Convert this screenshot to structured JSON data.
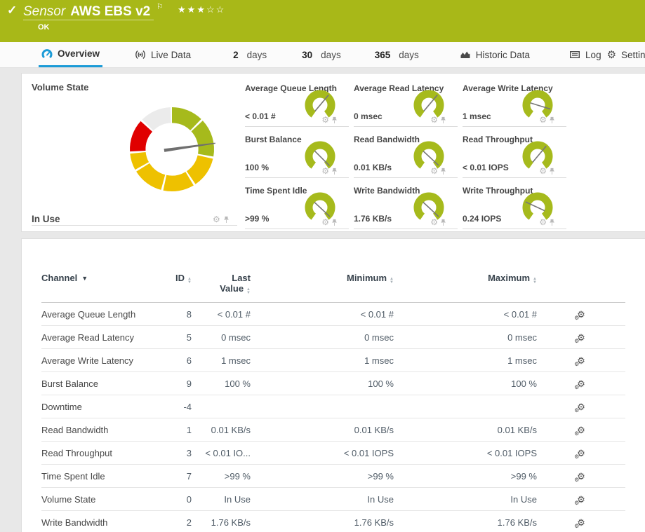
{
  "header": {
    "type_label": "Sensor",
    "sensor_name": "AWS EBS v2",
    "status_text": "OK",
    "stars_filled": "★★★",
    "stars_empty": "☆☆",
    "bar_color": "#a8b818"
  },
  "tabs": {
    "overview": {
      "label": "Overview"
    },
    "live_data": {
      "label": "Live Data"
    },
    "days2": {
      "num": "2",
      "unit": "days"
    },
    "days30": {
      "num": "30",
      "unit": "days"
    },
    "days365": {
      "num": "365",
      "unit": "days"
    },
    "historic": {
      "label": "Historic Data"
    },
    "log": {
      "label": "Log"
    },
    "settings": {
      "label": "Settings"
    }
  },
  "volume_gauge": {
    "title": "Volume State",
    "value": "In Use",
    "needle_angle": 82,
    "colors": {
      "ok": "#a6ba1c",
      "warning": "#eec100",
      "error": "#e00000",
      "none": "#ebebeb",
      "needle": "#6f6f6f"
    },
    "segments": [
      {
        "start": 0,
        "end": 44,
        "color": "#a6ba1c"
      },
      {
        "start": 47,
        "end": 100,
        "color": "#a6ba1c"
      },
      {
        "start": 103,
        "end": 146,
        "color": "#eec100"
      },
      {
        "start": 149,
        "end": 192,
        "color": "#eec100"
      },
      {
        "start": 195,
        "end": 238,
        "color": "#eec100"
      },
      {
        "start": 241,
        "end": 264,
        "color": "#eec100"
      },
      {
        "start": 267,
        "end": 312,
        "color": "#e00000"
      },
      {
        "start": 315,
        "end": 358,
        "color": "#ebebeb"
      }
    ]
  },
  "gauge_style": {
    "arc_color": "#a6ba1c",
    "needle_color": "#777777"
  },
  "mini_gauges": [
    {
      "title": "Average Queue Length",
      "value": "< 0.01 #",
      "needle_angle": 40
    },
    {
      "title": "Average Read Latency",
      "value": "0 msec",
      "needle_angle": 40
    },
    {
      "title": "Average Write Latency",
      "value": "1 msec",
      "needle_angle": 107
    },
    {
      "title": "Burst Balance",
      "value": "100 %",
      "needle_angle": 135
    },
    {
      "title": "Read Bandwidth",
      "value": "0.01 KB/s",
      "needle_angle": 133
    },
    {
      "title": "Read Throughput",
      "value": "< 0.01 IOPS",
      "needle_angle": 40
    },
    {
      "title": "Time Spent Idle",
      "value": ">99 %",
      "needle_angle": 133
    },
    {
      "title": "Write Bandwidth",
      "value": "1.76 KB/s",
      "needle_angle": 133
    },
    {
      "title": "Write Throughput",
      "value": "0.24 IOPS",
      "needle_angle": 295
    }
  ],
  "table": {
    "headers": {
      "channel": "Channel",
      "id": "ID",
      "last_line1": "Last",
      "last_line2": "Value",
      "minimum": "Minimum",
      "maximum": "Maximum"
    },
    "rows": [
      {
        "channel": "Average Queue Length",
        "id": "8",
        "last": "< 0.01 #",
        "min": "< 0.01 #",
        "max": "< 0.01 #"
      },
      {
        "channel": "Average Read Latency",
        "id": "5",
        "last": "0 msec",
        "min": "0 msec",
        "max": "0 msec"
      },
      {
        "channel": "Average Write Latency",
        "id": "6",
        "last": "1 msec",
        "min": "1 msec",
        "max": "1 msec"
      },
      {
        "channel": "Burst Balance",
        "id": "9",
        "last": "100 %",
        "min": "100 %",
        "max": "100 %"
      },
      {
        "channel": "Downtime",
        "id": "-4",
        "last": "",
        "min": "",
        "max": ""
      },
      {
        "channel": "Read Bandwidth",
        "id": "1",
        "last": "0.01 KB/s",
        "min": "0.01 KB/s",
        "max": "0.01 KB/s"
      },
      {
        "channel": "Read Throughput",
        "id": "3",
        "last": "< 0.01 IO...",
        "min": "< 0.01 IOPS",
        "max": "< 0.01 IOPS"
      },
      {
        "channel": "Time Spent Idle",
        "id": "7",
        "last": ">99 %",
        "min": ">99 %",
        "max": ">99 %"
      },
      {
        "channel": "Volume State",
        "id": "0",
        "last": "In Use",
        "min": "In Use",
        "max": "In Use"
      },
      {
        "channel": "Write Bandwidth",
        "id": "2",
        "last": "1.76 KB/s",
        "min": "1.76 KB/s",
        "max": "1.76 KB/s"
      }
    ]
  }
}
